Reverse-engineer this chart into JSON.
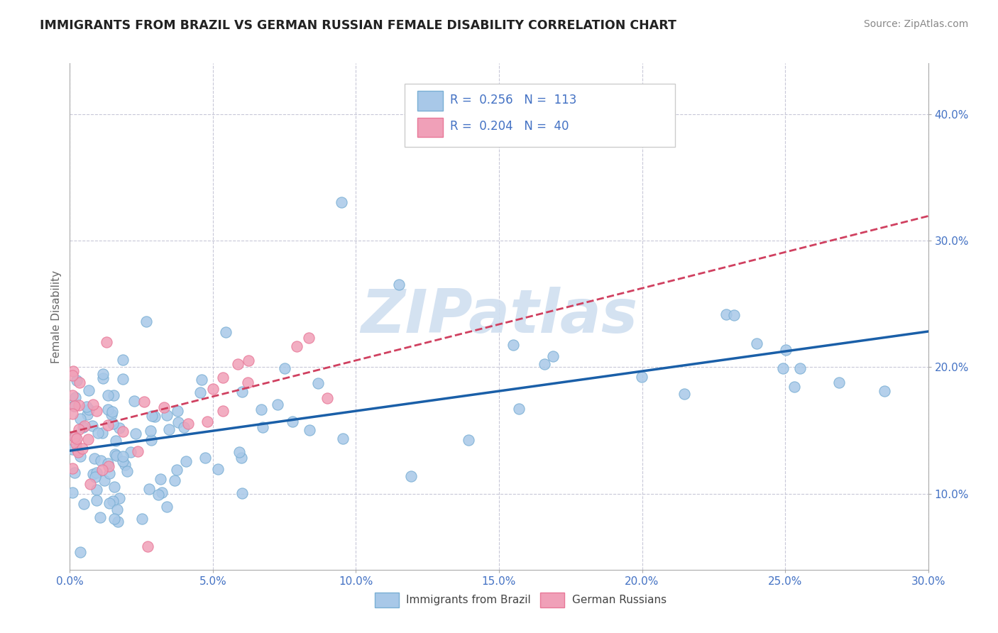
{
  "title": "IMMIGRANTS FROM BRAZIL VS GERMAN RUSSIAN FEMALE DISABILITY CORRELATION CHART",
  "source": "Source: ZipAtlas.com",
  "ylabel": "Female Disability",
  "xlim": [
    0.0,
    0.3
  ],
  "ylim": [
    0.04,
    0.44
  ],
  "yticks": [
    0.1,
    0.2,
    0.3,
    0.4
  ],
  "ytick_labels": [
    "10.0%",
    "20.0%",
    "30.0%",
    "40.0%"
  ],
  "xticks": [
    0.0,
    0.05,
    0.1,
    0.15,
    0.2,
    0.25,
    0.3
  ],
  "xtick_labels": [
    "0.0%",
    "5.0%",
    "10.0%",
    "15.0%",
    "20.0%",
    "25.0%",
    "30.0%"
  ],
  "blue_R": 0.256,
  "blue_N": 113,
  "pink_R": 0.204,
  "pink_N": 40,
  "blue_color": "#a8c8e8",
  "pink_color": "#f0a0b8",
  "blue_edge_color": "#7aafd4",
  "pink_edge_color": "#e87898",
  "blue_line_color": "#1a5fa8",
  "pink_line_color": "#d04060",
  "watermark_color": "#d0dff0",
  "watermark_text": "ZIPatlas",
  "legend_label_blue": "Immigrants from Brazil",
  "legend_label_pink": "German Russians",
  "background_color": "#ffffff",
  "grid_color": "#c8c8d8",
  "tick_color": "#4472c4",
  "title_color": "#222222",
  "source_color": "#888888",
  "axis_label_color": "#666666"
}
